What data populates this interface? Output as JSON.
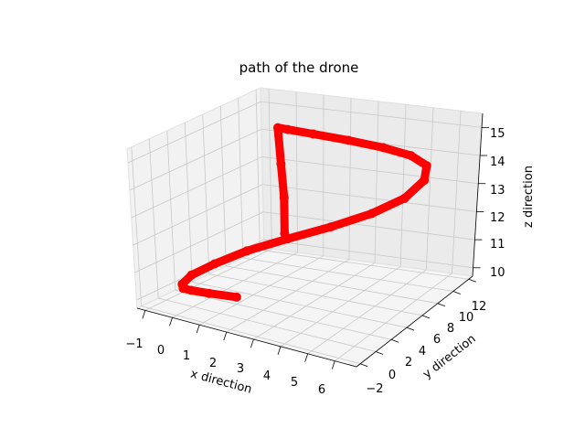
{
  "chart_data": {
    "type": "line",
    "projection": "3d",
    "title": "path of the drone",
    "xlabel": "x direction",
    "ylabel": "y direction",
    "zlabel": "z direction",
    "xlim": [
      -1.3,
      6.8
    ],
    "ylim": [
      -2.5,
      12.5
    ],
    "zlim": [
      9.7,
      15.5
    ],
    "xticks": [
      "−1",
      "0",
      "1",
      "2",
      "3",
      "4",
      "5",
      "6"
    ],
    "yticks": [
      "−2",
      "0",
      "2",
      "4",
      "6",
      "8",
      "10",
      "12"
    ],
    "zticks": [
      "10",
      "11",
      "12",
      "13",
      "14",
      "15"
    ],
    "grid": true,
    "series": [
      {
        "color": "#ff0000",
        "x": [
          1.2,
          0.3,
          -0.3,
          -0.6,
          -0.7,
          -0.5,
          0.1,
          1.0,
          2.2,
          3.5,
          4.7,
          5.6,
          6.0,
          5.8,
          5.0,
          3.8,
          2.4,
          1.0,
          0.0,
          -0.4,
          -0.3,
          -0.2,
          -0.2
        ],
        "y": [
          1.4,
          1.0,
          0.8,
          0.8,
          1.0,
          1.5,
          2.4,
          3.4,
          4.4,
          5.4,
          6.4,
          7.4,
          8.4,
          9.3,
          10.0,
          10.6,
          11.0,
          11.3,
          11.5,
          11.6,
          11.6,
          11.6,
          11.6
        ],
        "z": [
          10.1,
          10.1,
          10.1,
          10.1,
          10.2,
          10.5,
          10.9,
          11.4,
          11.9,
          12.4,
          12.9,
          13.4,
          13.9,
          14.2,
          14.3,
          14.3,
          14.3,
          14.3,
          14.3,
          14.3,
          13.0,
          11.8,
          10.5
        ]
      }
    ]
  }
}
